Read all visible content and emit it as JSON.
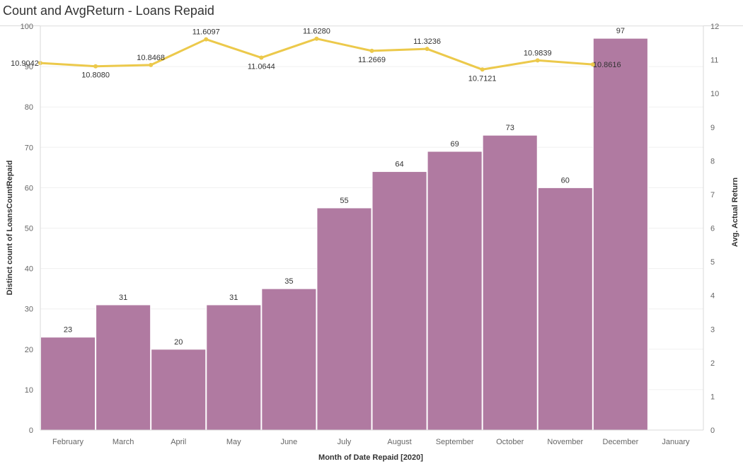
{
  "title": "Count and AvgReturn - Loans Repaid",
  "chart_data": {
    "type": "bar+line",
    "title": "Count and AvgReturn - Loans Repaid",
    "xlabel": "Month of Date Repaid [2020]",
    "ylabel_left": "Distinct count of LoansCountRepaid",
    "ylabel_right": "Avg. Actual Return",
    "x_ticks": [
      "February",
      "March",
      "April",
      "May",
      "June",
      "July",
      "August",
      "September",
      "October",
      "November",
      "December",
      "January"
    ],
    "y_left_ticks": [
      "0",
      "10",
      "20",
      "30",
      "40",
      "50",
      "60",
      "70",
      "80",
      "90",
      "100"
    ],
    "y_right_ticks": [
      "0",
      "1",
      "2",
      "3",
      "4",
      "5",
      "6",
      "7",
      "8",
      "9",
      "10",
      "11",
      "12"
    ],
    "ylim_left": [
      0,
      100
    ],
    "ylim_right": [
      0,
      12
    ],
    "grid": true,
    "bar_color": "#b07aa1",
    "line_color": "#ecc94b",
    "bars": {
      "name": "Distinct count of LoansCountRepaid",
      "categories": [
        "February",
        "March",
        "April",
        "May",
        "June",
        "July",
        "August",
        "September",
        "October",
        "November",
        "December"
      ],
      "values": [
        23,
        31,
        20,
        31,
        35,
        55,
        64,
        69,
        73,
        60,
        97
      ],
      "labels": [
        "23",
        "31",
        "20",
        "31",
        "35",
        "55",
        "64",
        "69",
        "73",
        "60",
        "97"
      ]
    },
    "line": {
      "name": "Avg. Actual Return",
      "categories": [
        "February",
        "March",
        "April",
        "May",
        "June",
        "July",
        "August",
        "September",
        "October",
        "November",
        "December"
      ],
      "values": [
        10.9042,
        10.808,
        10.8468,
        11.6097,
        11.0644,
        11.628,
        11.2669,
        11.3236,
        10.7121,
        10.9839,
        10.8616
      ],
      "labels": [
        "10.9042",
        "10.8080",
        "10.8468",
        "11.6097",
        "11.0644",
        "11.6280",
        "11.2669",
        "11.3236",
        "10.7121",
        "10.9839",
        "10.8616"
      ]
    }
  }
}
